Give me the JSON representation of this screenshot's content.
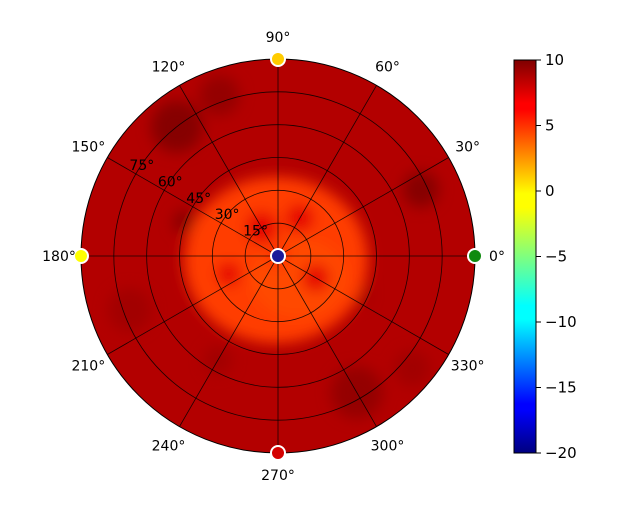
{
  "chart_data": {
    "type": "heatmap",
    "projection": "polar",
    "title": "",
    "angle_ticks": [
      "0°",
      "30°",
      "60°",
      "90°",
      "120°",
      "150°",
      "180°",
      "210°",
      "240°",
      "270°",
      "300°",
      "330°"
    ],
    "angle_tick_values": [
      0,
      30,
      60,
      90,
      120,
      150,
      180,
      210,
      240,
      270,
      300,
      330
    ],
    "radial_ticks": [
      "15°",
      "30°",
      "45°",
      "60°",
      "75°"
    ],
    "radial_tick_values": [
      15,
      30,
      45,
      60,
      75
    ],
    "radial_range": [
      0,
      90
    ],
    "colorbar": {
      "colormap": "jet",
      "range": [
        -20,
        10
      ],
      "ticks": [
        "10",
        "5",
        "0",
        "−5",
        "−10",
        "−15",
        "−20"
      ],
      "tick_values": [
        10,
        5,
        0,
        -5,
        -10,
        -15,
        -20
      ]
    },
    "grid": true,
    "field": {
      "description_values": "approximate value by polar elevation (deg from center) and azimuth (deg)",
      "center_value": 4.5,
      "inner_plateau_value": 4.5,
      "inner_plateau_radius": 40,
      "outer_value": 8.5,
      "hot_spot_value": 9.8
    },
    "markers": [
      {
        "azimuth": 0,
        "elevation": 90,
        "value": -2.5,
        "color": "#0f8a0f"
      },
      {
        "azimuth": 90,
        "elevation": 90,
        "value": 2.0,
        "color": "#ffcc00"
      },
      {
        "azimuth": 180,
        "elevation": 90,
        "value": 0.5,
        "color": "#ffff00"
      },
      {
        "azimuth": 270,
        "elevation": 90,
        "value": 9.0,
        "color": "#d40000"
      },
      {
        "azimuth": 0,
        "elevation": 0,
        "value": -18.0,
        "color": "#1a1a9a"
      }
    ]
  }
}
